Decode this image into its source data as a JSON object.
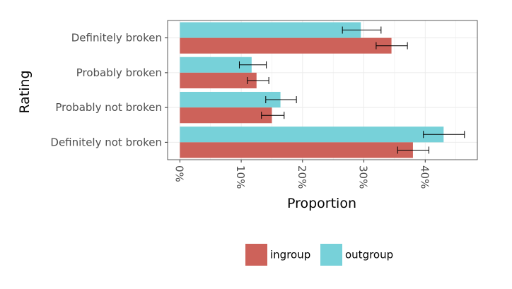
{
  "chart_data": {
    "type": "bar",
    "orientation": "horizontal",
    "xlabel": "Proportion",
    "ylabel": "Rating",
    "xlim": [
      -0.02,
      0.485
    ],
    "x_ticks": [
      0,
      0.1,
      0.2,
      0.3,
      0.4
    ],
    "x_tick_labels": [
      "0%",
      "10%",
      "20%",
      "30%",
      "40%"
    ],
    "categories": [
      "Definitely broken",
      "Probably broken",
      "Probably not broken",
      "Definitely not broken"
    ],
    "series": [
      {
        "name": "ingroup",
        "color": "#cd625a",
        "values": [
          0.345,
          0.125,
          0.15,
          0.38
        ],
        "error_low": [
          0.32,
          0.11,
          0.133,
          0.355
        ],
        "error_high": [
          0.371,
          0.145,
          0.17,
          0.406
        ]
      },
      {
        "name": "outgroup",
        "color": "#77d1d9",
        "values": [
          0.295,
          0.117,
          0.164,
          0.43
        ],
        "error_low": [
          0.265,
          0.097,
          0.14,
          0.397
        ],
        "error_high": [
          0.328,
          0.141,
          0.19,
          0.464
        ]
      }
    ],
    "grid": true,
    "legend_position": "bottom"
  }
}
